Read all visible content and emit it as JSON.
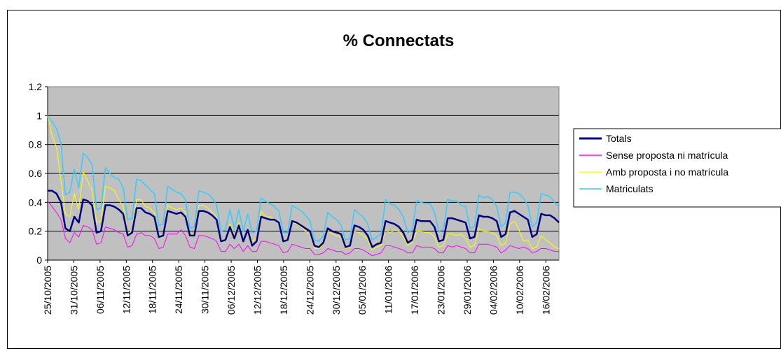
{
  "chart_data": {
    "type": "line",
    "title": "% Connectats",
    "xlabel": "",
    "ylabel": "",
    "ylim": [
      0,
      1.2
    ],
    "yticks": [
      "0",
      "0.2",
      "0.4",
      "0.6",
      "0.8",
      "1",
      "1.2"
    ],
    "grid": true,
    "legend_position": "right",
    "x_tick_labels": [
      "25/10/2005",
      "31/10/2005",
      "06/11/2005",
      "12/11/2005",
      "18/11/2005",
      "24/11/2005",
      "30/11/2005",
      "06/12/2005",
      "12/12/2005",
      "18/12/2005",
      "24/12/2005",
      "30/12/2005",
      "05/01/2006",
      "11/01/2006",
      "17/01/2006",
      "23/01/2006",
      "29/01/2006",
      "04/02/2006",
      "10/02/2006",
      "16/02/2006"
    ],
    "x_start": "25/10/2005",
    "x_end": "19/02/2006",
    "series": [
      {
        "name": "Totals",
        "color": "#000080",
        "width": 2.5,
        "values": [
          0.48,
          0.48,
          0.46,
          0.4,
          0.22,
          0.2,
          0.3,
          0.26,
          0.42,
          0.41,
          0.38,
          0.19,
          0.2,
          0.38,
          0.38,
          0.37,
          0.35,
          0.32,
          0.17,
          0.19,
          0.36,
          0.36,
          0.33,
          0.32,
          0.3,
          0.16,
          0.17,
          0.34,
          0.33,
          0.32,
          0.33,
          0.3,
          0.17,
          0.17,
          0.34,
          0.34,
          0.33,
          0.31,
          0.28,
          0.13,
          0.14,
          0.23,
          0.15,
          0.24,
          0.13,
          0.21,
          0.1,
          0.13,
          0.3,
          0.29,
          0.28,
          0.28,
          0.26,
          0.13,
          0.14,
          0.27,
          0.26,
          0.24,
          0.22,
          0.2,
          0.1,
          0.09,
          0.12,
          0.22,
          0.2,
          0.19,
          0.18,
          0.09,
          0.1,
          0.24,
          0.23,
          0.21,
          0.17,
          0.09,
          0.11,
          0.12,
          0.27,
          0.26,
          0.25,
          0.23,
          0.19,
          0.12,
          0.14,
          0.28,
          0.27,
          0.27,
          0.27,
          0.23,
          0.13,
          0.14,
          0.29,
          0.29,
          0.28,
          0.27,
          0.26,
          0.15,
          0.16,
          0.31,
          0.3,
          0.3,
          0.29,
          0.27,
          0.16,
          0.18,
          0.33,
          0.34,
          0.32,
          0.3,
          0.28,
          0.16,
          0.18,
          0.32,
          0.31,
          0.31,
          0.29,
          0.26
        ]
      },
      {
        "name": "Sense proposta ni matrícula",
        "color": "#ff00ff",
        "width": 1,
        "values": [
          0.41,
          0.37,
          0.33,
          0.28,
          0.15,
          0.12,
          0.19,
          0.16,
          0.24,
          0.23,
          0.21,
          0.11,
          0.12,
          0.23,
          0.22,
          0.21,
          0.19,
          0.18,
          0.09,
          0.1,
          0.18,
          0.19,
          0.17,
          0.17,
          0.15,
          0.08,
          0.09,
          0.18,
          0.18,
          0.18,
          0.21,
          0.17,
          0.09,
          0.08,
          0.17,
          0.17,
          0.16,
          0.15,
          0.13,
          0.06,
          0.06,
          0.11,
          0.08,
          0.11,
          0.06,
          0.1,
          0.06,
          0.06,
          0.13,
          0.13,
          0.12,
          0.11,
          0.1,
          0.05,
          0.06,
          0.11,
          0.1,
          0.09,
          0.08,
          0.08,
          0.04,
          0.04,
          0.05,
          0.08,
          0.07,
          0.06,
          0.06,
          0.04,
          0.05,
          0.08,
          0.08,
          0.07,
          0.05,
          0.03,
          0.04,
          0.05,
          0.1,
          0.1,
          0.09,
          0.08,
          0.07,
          0.05,
          0.05,
          0.1,
          0.09,
          0.09,
          0.09,
          0.08,
          0.05,
          0.05,
          0.1,
          0.09,
          0.1,
          0.09,
          0.08,
          0.05,
          0.05,
          0.11,
          0.11,
          0.11,
          0.1,
          0.09,
          0.05,
          0.07,
          0.1,
          0.09,
          0.08,
          0.09,
          0.08,
          0.05,
          0.06,
          0.08,
          0.08,
          0.07,
          0.06,
          0.06
        ]
      },
      {
        "name": "Amb proposta i no matrícula",
        "color": "#ffff00",
        "width": 1,
        "values": [
          1.0,
          0.86,
          0.78,
          0.55,
          0.32,
          0.3,
          0.46,
          0.35,
          0.61,
          0.55,
          0.48,
          0.26,
          0.27,
          0.51,
          0.5,
          0.48,
          0.42,
          0.37,
          0.18,
          0.21,
          0.42,
          0.42,
          0.37,
          0.36,
          0.33,
          0.17,
          0.18,
          0.38,
          0.36,
          0.35,
          0.36,
          0.33,
          0.18,
          0.18,
          0.38,
          0.38,
          0.36,
          0.33,
          0.3,
          0.14,
          0.14,
          0.25,
          0.17,
          0.26,
          0.14,
          0.22,
          0.13,
          0.15,
          0.34,
          0.3,
          0.3,
          0.28,
          0.25,
          0.14,
          0.14,
          0.26,
          0.25,
          0.23,
          0.2,
          0.18,
          0.08,
          0.08,
          0.11,
          0.2,
          0.18,
          0.17,
          0.16,
          0.08,
          0.09,
          0.2,
          0.19,
          0.17,
          0.14,
          0.07,
          0.09,
          0.1,
          0.21,
          0.19,
          0.21,
          0.2,
          0.16,
          0.1,
          0.12,
          0.2,
          0.2,
          0.19,
          0.19,
          0.16,
          0.09,
          0.1,
          0.18,
          0.18,
          0.17,
          0.18,
          0.15,
          0.09,
          0.1,
          0.22,
          0.2,
          0.2,
          0.19,
          0.17,
          0.1,
          0.12,
          0.25,
          0.27,
          0.21,
          0.13,
          0.14,
          0.08,
          0.09,
          0.17,
          0.14,
          0.12,
          0.09,
          0.08
        ]
      },
      {
        "name": "Matriculats",
        "color": "#33ccff",
        "width": 1.5,
        "values": [
          1.0,
          0.96,
          0.91,
          0.81,
          0.45,
          0.47,
          0.63,
          0.5,
          0.74,
          0.71,
          0.66,
          0.35,
          0.36,
          0.64,
          0.6,
          0.57,
          0.56,
          0.5,
          0.28,
          0.29,
          0.56,
          0.55,
          0.52,
          0.49,
          0.46,
          0.24,
          0.25,
          0.51,
          0.49,
          0.47,
          0.46,
          0.42,
          0.22,
          0.23,
          0.48,
          0.47,
          0.46,
          0.43,
          0.38,
          0.2,
          0.21,
          0.35,
          0.22,
          0.35,
          0.2,
          0.32,
          0.19,
          0.2,
          0.43,
          0.41,
          0.39,
          0.37,
          0.34,
          0.19,
          0.19,
          0.38,
          0.36,
          0.34,
          0.31,
          0.27,
          0.14,
          0.13,
          0.17,
          0.33,
          0.3,
          0.28,
          0.24,
          0.14,
          0.15,
          0.35,
          0.32,
          0.3,
          0.25,
          0.14,
          0.16,
          0.18,
          0.42,
          0.39,
          0.38,
          0.35,
          0.3,
          0.19,
          0.21,
          0.41,
          0.4,
          0.39,
          0.39,
          0.33,
          0.2,
          0.21,
          0.42,
          0.41,
          0.41,
          0.38,
          0.37,
          0.22,
          0.23,
          0.45,
          0.43,
          0.44,
          0.42,
          0.37,
          0.23,
          0.26,
          0.47,
          0.47,
          0.46,
          0.43,
          0.38,
          0.23,
          0.26,
          0.46,
          0.45,
          0.44,
          0.4,
          0.37
        ]
      }
    ]
  }
}
